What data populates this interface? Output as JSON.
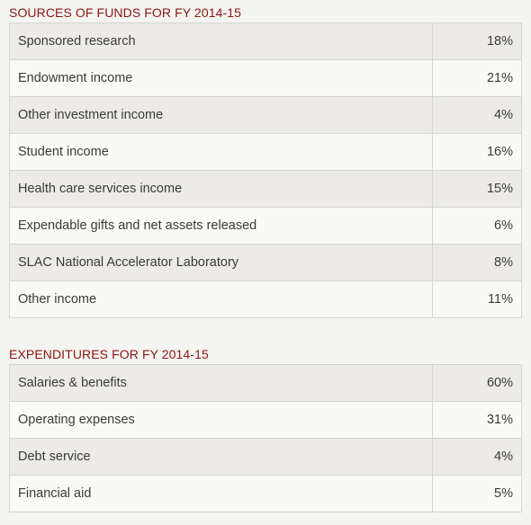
{
  "sources": {
    "title": "SOURCES OF FUNDS FOR FY 2014-15",
    "rows": [
      {
        "label": "Sponsored research",
        "value": "18%"
      },
      {
        "label": "Endowment income",
        "value": "21%"
      },
      {
        "label": "Other investment income",
        "value": "4%"
      },
      {
        "label": "Student income",
        "value": "16%"
      },
      {
        "label": "Health care services income",
        "value": "15%"
      },
      {
        "label": "Expendable gifts and net assets released",
        "value": "6%"
      },
      {
        "label": "SLAC National Accelerator Laboratory",
        "value": "8%"
      },
      {
        "label": "Other income",
        "value": "11%"
      }
    ]
  },
  "expenditures": {
    "title": "EXPENDITURES FOR FY 2014-15",
    "rows": [
      {
        "label": "Salaries & benefits",
        "value": "60%"
      },
      {
        "label": "Operating expenses",
        "value": "31%"
      },
      {
        "label": "Debt service",
        "value": "4%"
      },
      {
        "label": "Financial aid",
        "value": "5%"
      }
    ]
  }
}
